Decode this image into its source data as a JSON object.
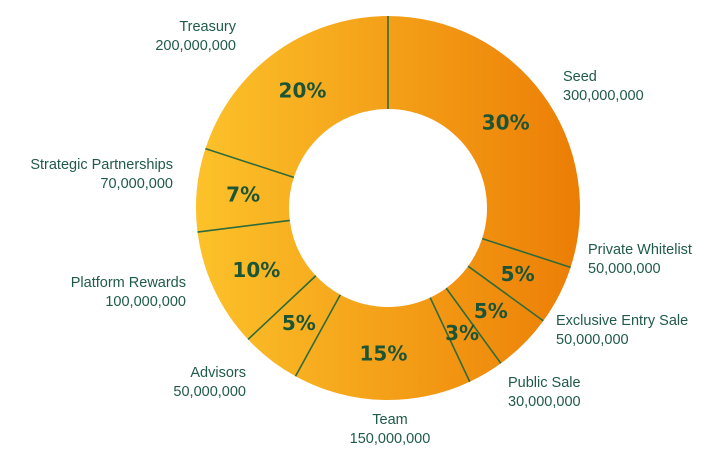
{
  "chart_data": {
    "type": "pie",
    "variant": "donut",
    "slices": [
      {
        "label": "Seed",
        "amount": "300,000,000",
        "percent": "30%",
        "value": 30
      },
      {
        "label": "Private Whitelist",
        "amount": "50,000,000",
        "percent": "5%",
        "value": 5
      },
      {
        "label": "Exclusive Entry Sale",
        "amount": "50,000,000",
        "percent": "5%",
        "value": 5
      },
      {
        "label": "Public Sale",
        "amount": "30,000,000",
        "percent": "3%",
        "value": 3
      },
      {
        "label": "Team",
        "amount": "150,000,000",
        "percent": "15%",
        "value": 15
      },
      {
        "label": "Advisors",
        "amount": "50,000,000",
        "percent": "5%",
        "value": 5
      },
      {
        "label": "Platform Rewards",
        "amount": "100,000,000",
        "percent": "10%",
        "value": 10
      },
      {
        "label": "Strategic Partnerships",
        "amount": "70,000,000",
        "percent": "7%",
        "value": 7
      },
      {
        "label": "Treasury",
        "amount": "200,000,000",
        "percent": "20%",
        "value": 20
      }
    ],
    "colors": {
      "gradient_start": "#fcc22a",
      "gradient_end": "#ec7e06",
      "separator": "#2e6b3a",
      "label_text": "#1f5a4a",
      "percent_text": "#1c5436"
    }
  }
}
